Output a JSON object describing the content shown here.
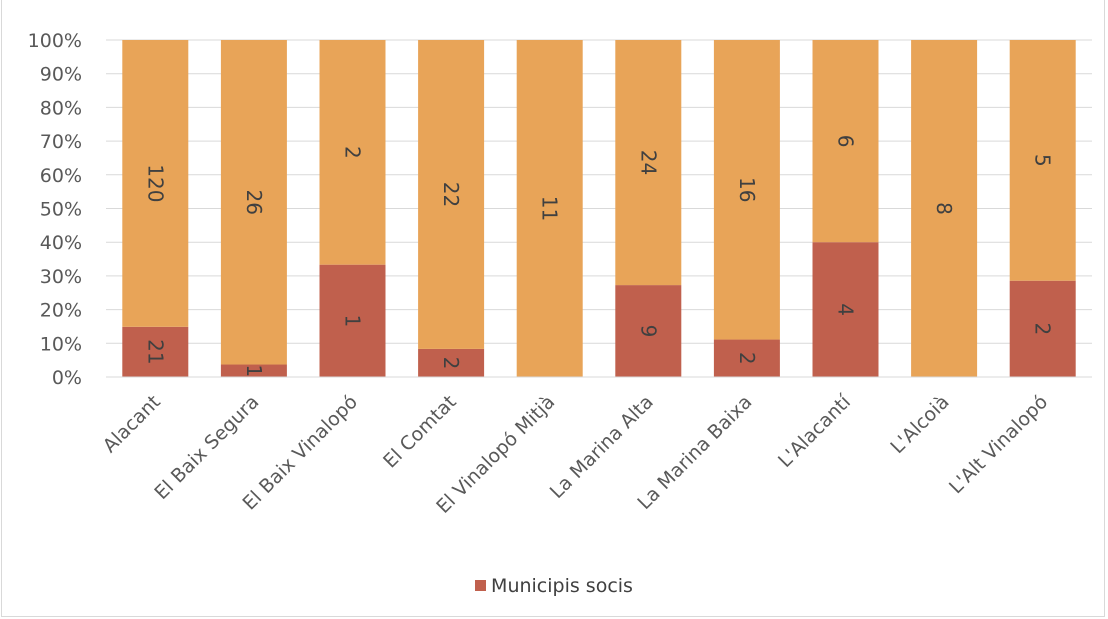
{
  "chart_data": {
    "type": "bar",
    "stacked": "percent",
    "categories": [
      "Alacant",
      "El Baix Segura",
      "El Baix Vinalopó",
      "El Comtat",
      "El Vinalopó Mitjà",
      "La Marina Alta",
      "La Marina Baixa",
      "L'Alacantí",
      "L'Alcoià",
      "L'Alt Vinalopó"
    ],
    "series": [
      {
        "name": "Municipis socis",
        "color": "#c0604d",
        "values": [
          21,
          1,
          1,
          2,
          0,
          9,
          2,
          4,
          0,
          2
        ]
      },
      {
        "name": "",
        "color": "#e8a458",
        "values": [
          120,
          26,
          2,
          22,
          11,
          24,
          16,
          6,
          8,
          5
        ]
      }
    ],
    "title": "",
    "xlabel": "",
    "ylabel": "",
    "ylim": [
      0,
      100
    ],
    "y_ticks": [
      "0%",
      "10%",
      "20%",
      "30%",
      "40%",
      "50%",
      "60%",
      "70%",
      "80%",
      "90%",
      "100%"
    ],
    "grid": true,
    "legend_position": "bottom"
  },
  "legend": {
    "label": "Municipis socis",
    "color": "#c0604d"
  }
}
